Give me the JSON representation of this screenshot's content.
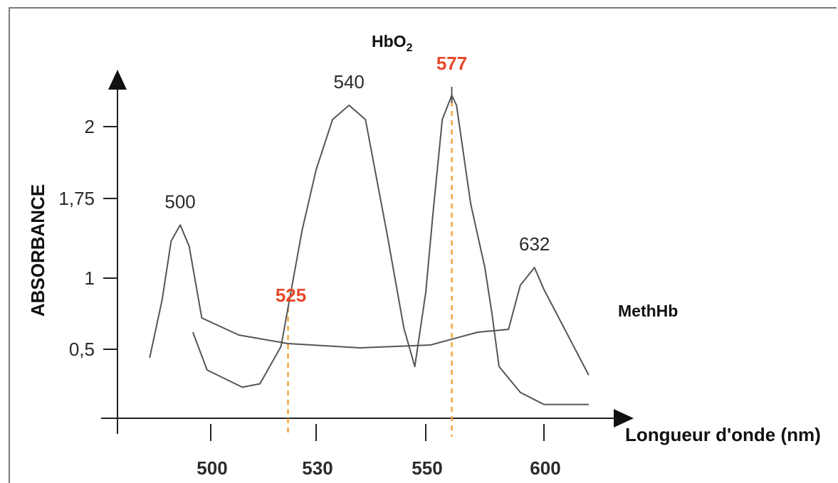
{
  "chart_data": {
    "type": "line",
    "ylabel": "ABSORBANCE",
    "xlabel": "Longueur d'onde (nm)",
    "y_ticks": [
      "2",
      "1,75",
      "1",
      "0,5"
    ],
    "x_ticks": [
      "500",
      "530",
      "550",
      "600"
    ],
    "series": [
      {
        "name": "HbO",
        "name_sub": "2",
        "points": [
          [
            490,
            0.62
          ],
          [
            498,
            0.38
          ],
          [
            509,
            0.28
          ],
          [
            514,
            0.3
          ],
          [
            520,
            0.52
          ],
          [
            526,
            1.45
          ],
          [
            530,
            1.85
          ],
          [
            533,
            2.05
          ],
          [
            536,
            2.15
          ],
          [
            539,
            2.05
          ],
          [
            543,
            1.4
          ],
          [
            546,
            0.65
          ],
          [
            548,
            0.4
          ],
          [
            550,
            0.9
          ],
          [
            553,
            1.6
          ],
          [
            557,
            2.05
          ],
          [
            561,
            2.22
          ],
          [
            563,
            2.15
          ],
          [
            569,
            1.7
          ],
          [
            575,
            1.1
          ],
          [
            578,
            0.75
          ],
          [
            581,
            0.4
          ],
          [
            590,
            0.25
          ],
          [
            600,
            0.18
          ],
          [
            608,
            0.18
          ]
        ]
      },
      {
        "name": "MethHb",
        "points": [
          [
            466,
            0.45
          ],
          [
            473,
            0.85
          ],
          [
            478,
            1.35
          ],
          [
            483,
            1.5
          ],
          [
            488,
            1.3
          ],
          [
            495,
            0.72
          ],
          [
            508,
            0.6
          ],
          [
            522,
            0.54
          ],
          [
            538,
            0.51
          ],
          [
            552,
            0.53
          ],
          [
            572,
            0.62
          ],
          [
            585,
            0.64
          ],
          [
            590,
            0.95
          ],
          [
            596,
            1.1
          ],
          [
            600,
            0.92
          ],
          [
            608,
            0.35
          ]
        ]
      }
    ],
    "peaks": [
      {
        "label": "500",
        "x": 483,
        "y": 1.5
      },
      {
        "label": "540",
        "x": 536,
        "y": 2.15
      },
      {
        "label": "577",
        "x": 561,
        "y": 2.22
      },
      {
        "label": "632",
        "x": 596,
        "y": 1.1
      }
    ],
    "markers": [
      {
        "label": "525",
        "x": 522
      },
      {
        "label": "577",
        "x": 561
      }
    ],
    "colors": {
      "curve": "#555555",
      "marker": "#f2a541",
      "highlight": "#e8472a",
      "axis": "#222222"
    },
    "grid": false
  }
}
